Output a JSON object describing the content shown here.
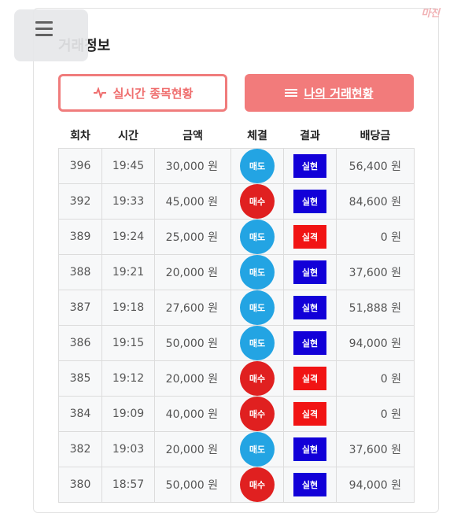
{
  "header": {
    "title": "거래정보",
    "logo_text": "마진"
  },
  "tabs": [
    {
      "label": "실시간 종목현황",
      "icon": "pulse-icon",
      "active": false
    },
    {
      "label": "나의 거래현황",
      "icon": "list-icon",
      "active": true
    }
  ],
  "table": {
    "columns": [
      "회차",
      "시간",
      "금액",
      "체결",
      "결과",
      "배당금"
    ],
    "rows": [
      {
        "round": "396",
        "time": "19:45",
        "amount": "30,000 원",
        "exec": "매도",
        "result": "실현",
        "dividend": "56,400 원"
      },
      {
        "round": "392",
        "time": "19:33",
        "amount": "45,000 원",
        "exec": "매수",
        "result": "실현",
        "dividend": "84,600 원"
      },
      {
        "round": "389",
        "time": "19:24",
        "amount": "25,000 원",
        "exec": "매도",
        "result": "실격",
        "dividend": "0 원"
      },
      {
        "round": "388",
        "time": "19:21",
        "amount": "20,000 원",
        "exec": "매도",
        "result": "실현",
        "dividend": "37,600 원"
      },
      {
        "round": "387",
        "time": "19:18",
        "amount": "27,600 원",
        "exec": "매도",
        "result": "실현",
        "dividend": "51,888 원"
      },
      {
        "round": "386",
        "time": "19:15",
        "amount": "50,000 원",
        "exec": "매도",
        "result": "실현",
        "dividend": "94,000 원"
      },
      {
        "round": "385",
        "time": "19:12",
        "amount": "20,000 원",
        "exec": "매수",
        "result": "실격",
        "dividend": "0 원"
      },
      {
        "round": "384",
        "time": "19:09",
        "amount": "40,000 원",
        "exec": "매수",
        "result": "실격",
        "dividend": "0 원"
      },
      {
        "round": "382",
        "time": "19:03",
        "amount": "20,000 원",
        "exec": "매도",
        "result": "실현",
        "dividend": "37,600 원"
      },
      {
        "round": "380",
        "time": "18:57",
        "amount": "50,000 원",
        "exec": "매수",
        "result": "실현",
        "dividend": "94,000 원"
      }
    ]
  },
  "colors": {
    "accent": "#f27b7b",
    "sell": "#23a4e3",
    "buy": "#e02020",
    "win": "#1200d8",
    "lose": "#f11414"
  }
}
